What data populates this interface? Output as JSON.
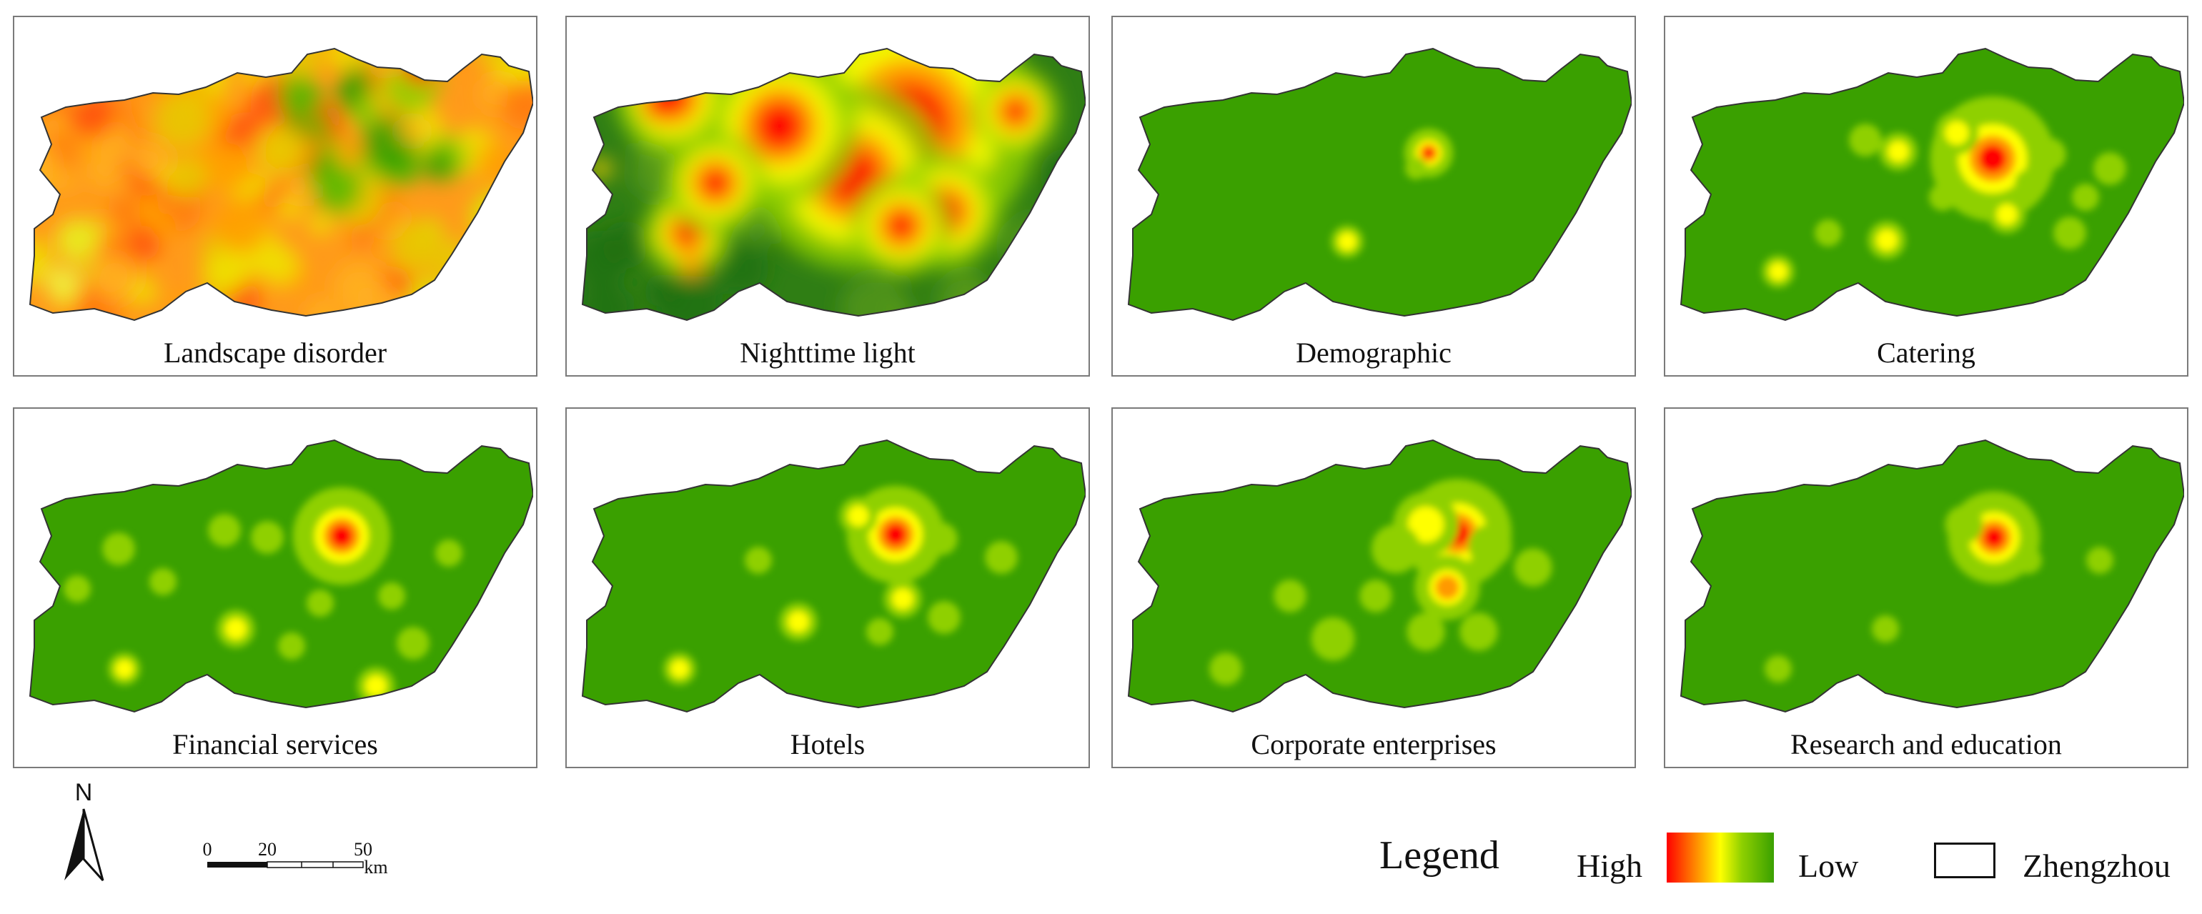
{
  "panels": [
    {
      "id": "landscape",
      "caption": "Landscape disorder",
      "style": "landscape"
    },
    {
      "id": "nightlight",
      "caption": "Nighttime light",
      "style": "nightlight"
    },
    {
      "id": "demographic",
      "caption": "Demographic",
      "style": "demographic"
    },
    {
      "id": "catering",
      "caption": "Catering",
      "style": "catering"
    },
    {
      "id": "financial",
      "caption": "Financial services",
      "style": "financial"
    },
    {
      "id": "hotels",
      "caption": "Hotels",
      "style": "hotels"
    },
    {
      "id": "corporate",
      "caption": "Corporate enterprises",
      "style": "corporate"
    },
    {
      "id": "research",
      "caption": "Research and education",
      "style": "research"
    }
  ],
  "north_label": "N",
  "scale": {
    "ticks": [
      "0",
      "20",
      "50"
    ],
    "unit": "km"
  },
  "legend": {
    "title": "Legend",
    "high_label": "High",
    "low_label": "Low",
    "boundary_label": "Zhengzhou"
  },
  "colors": {
    "low": "#3aa000",
    "mid_low": "#8fd000",
    "mid": "#ffff00",
    "mid_high": "#ff9900",
    "high": "#ff0000",
    "dark_green": "#1e6e0e"
  }
}
